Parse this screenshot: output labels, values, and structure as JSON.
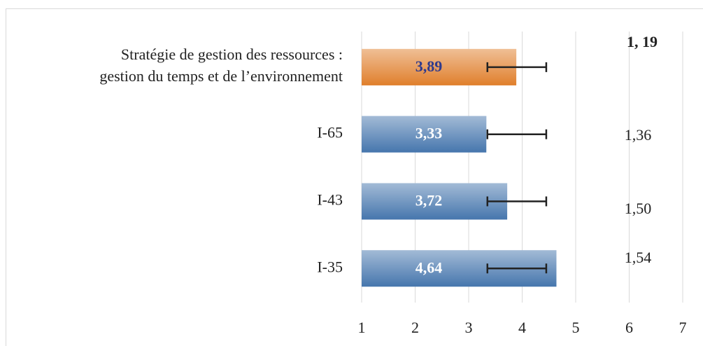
{
  "chart_data": {
    "type": "hbar",
    "categories": [
      [
        "Stratégie de gestion des ressources :",
        "gestion du temps et de l’environnement"
      ],
      "I-65",
      "I-43",
      "I-35"
    ],
    "values": [
      3.89,
      3.33,
      3.72,
      4.64
    ],
    "value_labels": [
      "3,89",
      "3,33",
      "3,72",
      "4,64"
    ],
    "value_label_colors": [
      "#2f3a8c",
      "#ffffff",
      "#ffffff",
      "#ffffff"
    ],
    "colors": [
      "#e07f2c",
      "#4676ad",
      "#4676ad",
      "#4676ad"
    ],
    "error_bars": [
      {
        "low": 3.35,
        "high": 4.45
      },
      {
        "low": 3.35,
        "high": 4.45
      },
      {
        "low": 3.35,
        "high": 4.45
      },
      {
        "low": 3.35,
        "high": 4.45
      }
    ],
    "annotations": [
      "1, 19",
      "1,36",
      "1,50",
      "1,54"
    ],
    "annotation_bold": [
      true,
      false,
      false,
      false
    ],
    "xlim": [
      1,
      7
    ],
    "xticks": [
      1,
      2,
      3,
      4,
      5,
      6,
      7
    ],
    "grid": true
  }
}
